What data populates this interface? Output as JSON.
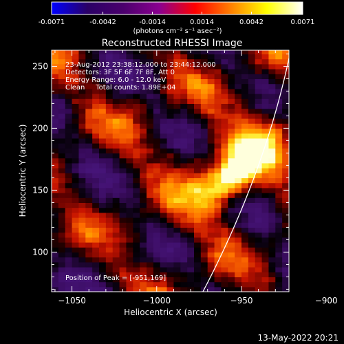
{
  "colors": {
    "background": "#000000",
    "foreground": "#ffffff",
    "limb": "#ffffff",
    "colorbar_stops": [
      "#0000ff",
      "#2a0066",
      "#4b006d",
      "#8a0090",
      "#ff0000",
      "#ff8000",
      "#ffff00",
      "#ffffff"
    ]
  },
  "colorbar": {
    "ticks": [
      "-0.0071",
      "-0.0042",
      "-0.0014",
      "0.0014",
      "0.0042",
      "0.0071"
    ],
    "unit_label": "(photons cm⁻² s⁻¹ asec⁻²)",
    "range": [
      -0.0071,
      0.0071
    ]
  },
  "chart_data": {
    "type": "heatmap",
    "title": "Reconstructed RHESSI Image",
    "xlabel": "Heliocentric X (arcsec)",
    "ylabel": "Heliocentric Y (arcsec)",
    "xlim": [
      -1062,
      -922
    ],
    "ylim": [
      68,
      263
    ],
    "xticks": [
      -1050,
      -1000,
      -950,
      -900
    ],
    "yticks": [
      100,
      150,
      200,
      250
    ],
    "info": [
      "23-Aug-2012 23:38:12.000 to 23:44:12.000",
      "Detectors: 3F 5F 6F 7F 8F, Att 0",
      "Energy Range: 6.0 - 12.0 keV",
      "Clean     Total counts: 1.89E+04"
    ],
    "peak_label": "Position of Peak = [-951,169]",
    "peak": [
      -951,
      169
    ],
    "source_peak_value": 0.0071
  },
  "footer": {
    "timestamp": "13-May-2022 20:21"
  }
}
